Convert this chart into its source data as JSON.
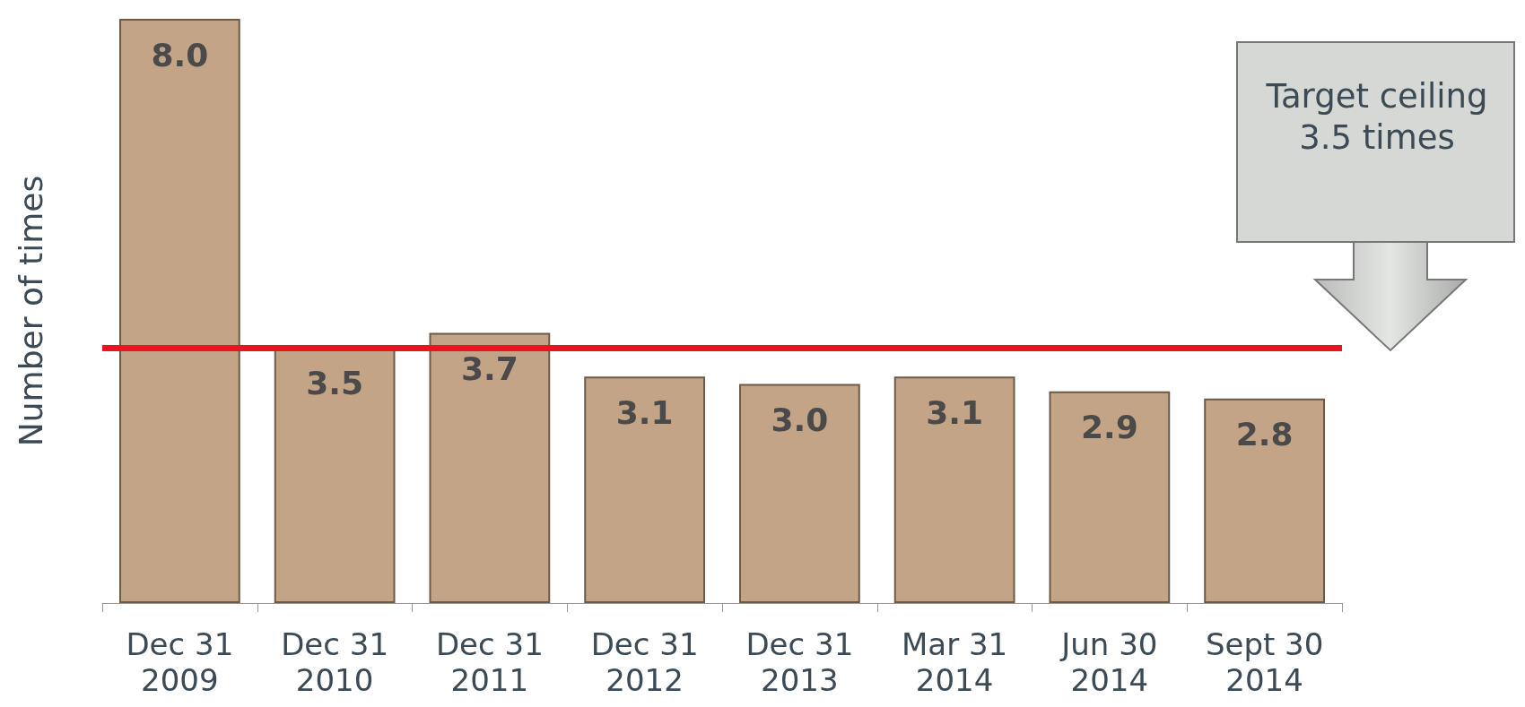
{
  "chart_data": {
    "type": "bar",
    "ylabel": "Number of times",
    "categories": [
      "Dec 31\n2009",
      "Dec 31\n2010",
      "Dec 31\n2011",
      "Dec 31\n2012",
      "Dec 31\n2013",
      "Mar 31\n2014",
      "Jun 30\n2014",
      "Sept 30\n2014"
    ],
    "values": [
      8.0,
      3.5,
      3.7,
      3.1,
      3.0,
      3.1,
      2.9,
      2.8
    ],
    "value_labels": [
      "8.0",
      "3.5",
      "3.7",
      "3.1",
      "3.0",
      "3.1",
      "2.9",
      "2.8"
    ],
    "color": "#c4a486",
    "ref_lines": [
      {
        "axis": "y",
        "value": 3.5,
        "color": "#ee1122"
      }
    ],
    "annotations": [
      "Target ceiling 3.5 times"
    ],
    "grid": false
  }
}
